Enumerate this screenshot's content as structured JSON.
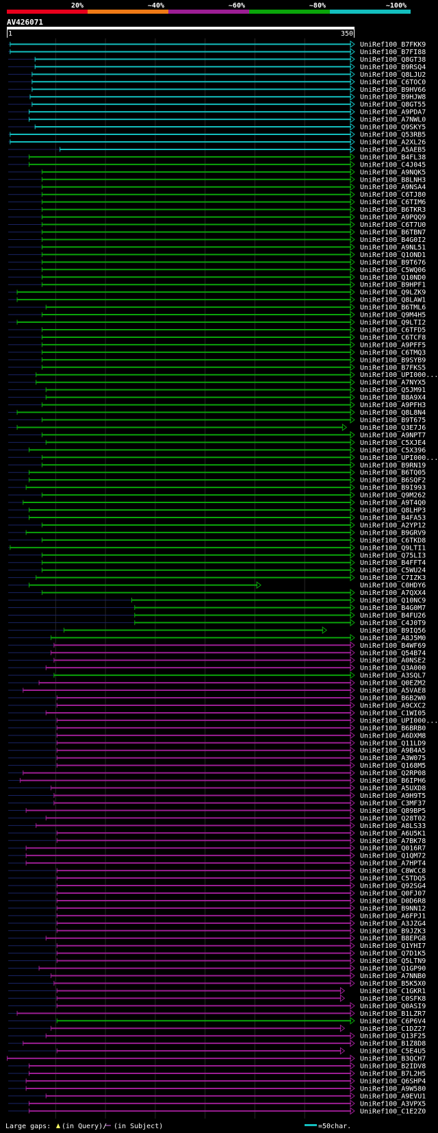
{
  "chart_data": {
    "type": "alignment-overview",
    "query": {
      "name": "AV426071",
      "start": 1,
      "end": 350
    },
    "identity_legend": [
      {
        "label": "20%",
        "color": "#e8001c"
      },
      {
        "label": "~40%",
        "color": "#ef7a16"
      },
      {
        "label": "~60%",
        "color": "#9c1e94"
      },
      {
        "label": "~80%",
        "color": "#0aa50a"
      },
      {
        "label": "~100%",
        "color": "#13bfbf"
      }
    ],
    "hits": [
      {
        "name": "UniRef100_B7FKK9",
        "start": 4,
        "end": 350,
        "identity": 100
      },
      {
        "name": "UniRef100_B7FI88",
        "start": 4,
        "end": 350,
        "identity": 100
      },
      {
        "name": "UniRef100_Q8GT38",
        "start": 29,
        "end": 350,
        "identity": 100
      },
      {
        "name": "UniRef100_B9RSQ4",
        "start": 29,
        "end": 350,
        "identity": 100
      },
      {
        "name": "UniRef100_Q8LJU2",
        "start": 26,
        "end": 350,
        "identity": 100
      },
      {
        "name": "UniRef100_C6TOC0",
        "start": 26,
        "end": 350,
        "identity": 100
      },
      {
        "name": "UniRef100_B9HV66",
        "start": 26,
        "end": 350,
        "identity": 100
      },
      {
        "name": "UniRef100_B9HJW8",
        "start": 24,
        "end": 350,
        "identity": 100
      },
      {
        "name": "UniRef100_Q8GT55",
        "start": 26,
        "end": 350,
        "identity": 100
      },
      {
        "name": "UniRef100_A9PDA7",
        "start": 23,
        "end": 350,
        "identity": 100
      },
      {
        "name": "UniRef100_A7NWL0",
        "start": 23,
        "end": 350,
        "identity": 100
      },
      {
        "name": "UniRef100_Q9SKY5",
        "start": 29,
        "end": 350,
        "identity": 100
      },
      {
        "name": "UniRef100_Q53RB5",
        "start": 4,
        "end": 350,
        "identity": 100
      },
      {
        "name": "UniRef100_A2XL26",
        "start": 4,
        "end": 350,
        "identity": 100
      },
      {
        "name": "UniRef100_A5AEB5",
        "start": 54,
        "end": 350,
        "identity": 100
      },
      {
        "name": "UniRef100_B4FL38",
        "start": 23,
        "end": 350,
        "identity": 80
      },
      {
        "name": "UniRef100_C4J045",
        "start": 23,
        "end": 350,
        "identity": 80
      },
      {
        "name": "UniRef100_A9NQK5",
        "start": 36,
        "end": 350,
        "identity": 80
      },
      {
        "name": "UniRef100_B8LNH3",
        "start": 36,
        "end": 350,
        "identity": 80
      },
      {
        "name": "UniRef100_A9NSA4",
        "start": 36,
        "end": 350,
        "identity": 80
      },
      {
        "name": "UniRef100_C6TJ80",
        "start": 36,
        "end": 350,
        "identity": 80
      },
      {
        "name": "UniRef100_C6TIM6",
        "start": 36,
        "end": 350,
        "identity": 80
      },
      {
        "name": "UniRef100_B6TKR3",
        "start": 36,
        "end": 350,
        "identity": 80
      },
      {
        "name": "UniRef100_A9PQQ9",
        "start": 36,
        "end": 350,
        "identity": 80
      },
      {
        "name": "UniRef100_C6T7U0",
        "start": 36,
        "end": 350,
        "identity": 80
      },
      {
        "name": "UniRef100_B6TBN7",
        "start": 36,
        "end": 350,
        "identity": 80
      },
      {
        "name": "UniRef100_B4G0I2",
        "start": 36,
        "end": 350,
        "identity": 80
      },
      {
        "name": "UniRef100_A9NL51",
        "start": 36,
        "end": 350,
        "identity": 80
      },
      {
        "name": "UniRef100_Q1OND1",
        "start": 36,
        "end": 350,
        "identity": 80
      },
      {
        "name": "UniRef100_B9T676",
        "start": 36,
        "end": 350,
        "identity": 80
      },
      {
        "name": "UniRef100_C5WQ06",
        "start": 36,
        "end": 350,
        "identity": 80
      },
      {
        "name": "UniRef100_Q10ND0",
        "start": 36,
        "end": 350,
        "identity": 80
      },
      {
        "name": "UniRef100_B9HPF1",
        "start": 36,
        "end": 350,
        "identity": 80
      },
      {
        "name": "UniRef100_Q9LZK9",
        "start": 11,
        "end": 350,
        "identity": 80
      },
      {
        "name": "UniRef100_Q8LAW1",
        "start": 11,
        "end": 350,
        "identity": 80
      },
      {
        "name": "UniRef100_B6TML6",
        "start": 40,
        "end": 350,
        "identity": 80
      },
      {
        "name": "UniRef100_Q9M4H5",
        "start": 36,
        "end": 350,
        "identity": 80
      },
      {
        "name": "UniRef100_Q9LTI2",
        "start": 11,
        "end": 350,
        "identity": 80
      },
      {
        "name": "UniRef100_C6TFD5",
        "start": 36,
        "end": 350,
        "identity": 80
      },
      {
        "name": "UniRef100_C6TCF8",
        "start": 36,
        "end": 350,
        "identity": 80
      },
      {
        "name": "UniRef100_A9PFF5",
        "start": 36,
        "end": 350,
        "identity": 80
      },
      {
        "name": "UniRef100_C6TMQ3",
        "start": 36,
        "end": 350,
        "identity": 80
      },
      {
        "name": "UniRef100_B9SYB9",
        "start": 36,
        "end": 350,
        "identity": 80
      },
      {
        "name": "UniRef100_B7FKS5",
        "start": 36,
        "end": 350,
        "identity": 80
      },
      {
        "name": "UniRef100_UPI000...",
        "start": 30,
        "end": 350,
        "identity": 80
      },
      {
        "name": "UniRef100_A7NYX5",
        "start": 30,
        "end": 350,
        "identity": 80
      },
      {
        "name": "UniRef100_Q5JM91",
        "start": 40,
        "end": 350,
        "identity": 80
      },
      {
        "name": "UniRef100_B8A9X4",
        "start": 40,
        "end": 350,
        "identity": 80
      },
      {
        "name": "UniRef100_A9PFH3",
        "start": 36,
        "end": 350,
        "identity": 80
      },
      {
        "name": "UniRef100_Q8L8N4",
        "start": 11,
        "end": 350,
        "identity": 80
      },
      {
        "name": "UniRef100_B9T675",
        "start": 36,
        "end": 350,
        "identity": 80
      },
      {
        "name": "UniRef100_Q3E7J6",
        "start": 11,
        "end": 342,
        "identity": 80
      },
      {
        "name": "UniRef100_A9NPT7",
        "start": 36,
        "end": 350,
        "identity": 80
      },
      {
        "name": "UniRef100_C5XJE4",
        "start": 40,
        "end": 350,
        "identity": 80
      },
      {
        "name": "UniRef100_C5X396",
        "start": 23,
        "end": 350,
        "identity": 80
      },
      {
        "name": "UniRef100_UPI000...",
        "start": 36,
        "end": 350,
        "identity": 80
      },
      {
        "name": "UniRef100_B9RN19",
        "start": 36,
        "end": 350,
        "identity": 80
      },
      {
        "name": "UniRef100_B6TQ05",
        "start": 23,
        "end": 350,
        "identity": 80
      },
      {
        "name": "UniRef100_B6SQF2",
        "start": 23,
        "end": 350,
        "identity": 80
      },
      {
        "name": "UniRef100_B9I993",
        "start": 20,
        "end": 350,
        "identity": 80
      },
      {
        "name": "UniRef100_Q9M262",
        "start": 36,
        "end": 350,
        "identity": 80
      },
      {
        "name": "UniRef100_A9T4Q0",
        "start": 17,
        "end": 350,
        "identity": 80
      },
      {
        "name": "UniRef100_Q8LHP3",
        "start": 23,
        "end": 350,
        "identity": 80
      },
      {
        "name": "UniRef100_B4FA53",
        "start": 23,
        "end": 350,
        "identity": 80
      },
      {
        "name": "UniRef100_A2YP12",
        "start": 36,
        "end": 350,
        "identity": 80
      },
      {
        "name": "UniRef100_B9GRV9",
        "start": 20,
        "end": 350,
        "identity": 80
      },
      {
        "name": "UniRef100_C6TKD8",
        "start": 36,
        "end": 350,
        "identity": 80
      },
      {
        "name": "UniRef100_Q9LTI1",
        "start": 4,
        "end": 350,
        "identity": 80
      },
      {
        "name": "UniRef100_Q75LI3",
        "start": 36,
        "end": 350,
        "identity": 80
      },
      {
        "name": "UniRef100_B4FFT4",
        "start": 36,
        "end": 350,
        "identity": 80
      },
      {
        "name": "UniRef100_C5WU24",
        "start": 36,
        "end": 350,
        "identity": 80
      },
      {
        "name": "UniRef100_C7IZK3",
        "start": 30,
        "end": 350,
        "identity": 80
      },
      {
        "name": "UniRef100_C0HDY6",
        "start": 23,
        "end": 256,
        "identity": 80
      },
      {
        "name": "UniRef100_A7QXX4",
        "start": 36,
        "end": 350,
        "identity": 80
      },
      {
        "name": "UniRef100_Q10NC9",
        "start": 126,
        "end": 350,
        "identity": 80
      },
      {
        "name": "UniRef100_B4G0M7",
        "start": 129,
        "end": 350,
        "identity": 80
      },
      {
        "name": "UniRef100_B4FU26",
        "start": 129,
        "end": 350,
        "identity": 80
      },
      {
        "name": "UniRef100_C4J0T9",
        "start": 129,
        "end": 350,
        "identity": 80
      },
      {
        "name": "UniRef100_B9IQ56",
        "start": 58,
        "end": 322,
        "identity": 80
      },
      {
        "name": "UniRef100_A8J5M0",
        "start": 45,
        "end": 350,
        "identity": 80
      },
      {
        "name": "UniRef100_B4WF69",
        "start": 48,
        "end": 350,
        "identity": 60
      },
      {
        "name": "UniRef100_Q54B74",
        "start": 45,
        "end": 350,
        "identity": 60
      },
      {
        "name": "UniRef100_A0NSE2",
        "start": 48,
        "end": 350,
        "identity": 60
      },
      {
        "name": "UniRef100_Q3A000",
        "start": 40,
        "end": 350,
        "identity": 60
      },
      {
        "name": "UniRef100_A3SQL7",
        "start": 48,
        "end": 350,
        "identity": 80
      },
      {
        "name": "UniRef100_Q0EZM2",
        "start": 33,
        "end": 350,
        "identity": 60
      },
      {
        "name": "UniRef100_A5VAE8",
        "start": 17,
        "end": 350,
        "identity": 60
      },
      {
        "name": "UniRef100_B6B2W0",
        "start": 51,
        "end": 350,
        "identity": 60
      },
      {
        "name": "UniRef100_A9CXC2",
        "start": 51,
        "end": 350,
        "identity": 60
      },
      {
        "name": "UniRef100_C1WI05",
        "start": 40,
        "end": 350,
        "identity": 60
      },
      {
        "name": "UniRef100_UPI000...",
        "start": 51,
        "end": 350,
        "identity": 60
      },
      {
        "name": "UniRef100_B6BRB0",
        "start": 51,
        "end": 350,
        "identity": 60
      },
      {
        "name": "UniRef100_A6DXM8",
        "start": 51,
        "end": 350,
        "identity": 60
      },
      {
        "name": "UniRef100_Q11LD9",
        "start": 51,
        "end": 350,
        "identity": 60
      },
      {
        "name": "UniRef100_A9B4A5",
        "start": 51,
        "end": 350,
        "identity": 60
      },
      {
        "name": "UniRef100_A3W075",
        "start": 51,
        "end": 350,
        "identity": 60
      },
      {
        "name": "UniRef100_Q168M5",
        "start": 51,
        "end": 350,
        "identity": 60
      },
      {
        "name": "UniRef100_Q2RP08",
        "start": 17,
        "end": 350,
        "identity": 60
      },
      {
        "name": "UniRef100_B6IPH6",
        "start": 14,
        "end": 350,
        "identity": 60
      },
      {
        "name": "UniRef100_A5UXD8",
        "start": 45,
        "end": 350,
        "identity": 60
      },
      {
        "name": "UniRef100_A9H9T5",
        "start": 48,
        "end": 350,
        "identity": 60
      },
      {
        "name": "UniRef100_C3MF37",
        "start": 48,
        "end": 350,
        "identity": 60
      },
      {
        "name": "UniRef100_Q89BP5",
        "start": 20,
        "end": 350,
        "identity": 60
      },
      {
        "name": "UniRef100_Q28T02",
        "start": 40,
        "end": 350,
        "identity": 60
      },
      {
        "name": "UniRef100_A8LS33",
        "start": 30,
        "end": 350,
        "identity": 60
      },
      {
        "name": "UniRef100_A6U5K1",
        "start": 51,
        "end": 350,
        "identity": 60
      },
      {
        "name": "UniRef100_A7BK78",
        "start": 51,
        "end": 350,
        "identity": 60
      },
      {
        "name": "UniRef100_Q016R7",
        "start": 20,
        "end": 350,
        "identity": 60
      },
      {
        "name": "UniRef100_Q1QM72",
        "start": 20,
        "end": 350,
        "identity": 60
      },
      {
        "name": "UniRef100_A7HPT4",
        "start": 20,
        "end": 350,
        "identity": 60
      },
      {
        "name": "UniRef100_C8WCC8",
        "start": 51,
        "end": 350,
        "identity": 60
      },
      {
        "name": "UniRef100_C5TDQ5",
        "start": 51,
        "end": 350,
        "identity": 60
      },
      {
        "name": "UniRef100_Q92SG4",
        "start": 51,
        "end": 350,
        "identity": 60
      },
      {
        "name": "UniRef100_Q0FJ07",
        "start": 51,
        "end": 350,
        "identity": 60
      },
      {
        "name": "UniRef100_D0D6R8",
        "start": 51,
        "end": 350,
        "identity": 60
      },
      {
        "name": "UniRef100_B9NN12",
        "start": 51,
        "end": 350,
        "identity": 60
      },
      {
        "name": "UniRef100_A6FPJ1",
        "start": 51,
        "end": 350,
        "identity": 60
      },
      {
        "name": "UniRef100_A3JZG4",
        "start": 51,
        "end": 350,
        "identity": 60
      },
      {
        "name": "UniRef100_B9JZK3",
        "start": 51,
        "end": 350,
        "identity": 60
      },
      {
        "name": "UniRef100_B8EPG8",
        "start": 40,
        "end": 350,
        "identity": 60
      },
      {
        "name": "UniRef100_Q1YHI7",
        "start": 51,
        "end": 350,
        "identity": 60
      },
      {
        "name": "UniRef100_Q7D1K5",
        "start": 51,
        "end": 350,
        "identity": 60
      },
      {
        "name": "UniRef100_Q5LTN9",
        "start": 51,
        "end": 350,
        "identity": 60
      },
      {
        "name": "UniRef100_Q1GP90",
        "start": 33,
        "end": 350,
        "identity": 60
      },
      {
        "name": "UniRef100_A7NNB0",
        "start": 45,
        "end": 350,
        "identity": 60
      },
      {
        "name": "UniRef100_B5K5X0",
        "start": 48,
        "end": 350,
        "identity": 60
      },
      {
        "name": "UniRef100_C1GKR1",
        "start": 51,
        "end": 340,
        "identity": 60
      },
      {
        "name": "UniRef100_C0SFK8",
        "start": 51,
        "end": 340,
        "identity": 60
      },
      {
        "name": "UniRef100_Q0ASI9",
        "start": 51,
        "end": 350,
        "identity": 60
      },
      {
        "name": "UniRef100_B1LZR7",
        "start": 11,
        "end": 350,
        "identity": 60
      },
      {
        "name": "UniRef100_C6P6V4",
        "start": 51,
        "end": 350,
        "identity": 80
      },
      {
        "name": "UniRef100_C1DZ27",
        "start": 45,
        "end": 340,
        "identity": 60
      },
      {
        "name": "UniRef100_Q13F25",
        "start": 40,
        "end": 350,
        "identity": 60
      },
      {
        "name": "UniRef100_B1Z8D8",
        "start": 17,
        "end": 350,
        "identity": 60
      },
      {
        "name": "UniRef100_C5E4U5",
        "start": 51,
        "end": 340,
        "identity": 60
      },
      {
        "name": "UniRef100_B3QCH7",
        "start": 1,
        "end": 350,
        "identity": 60
      },
      {
        "name": "UniRef100_B2IDV8",
        "start": 23,
        "end": 350,
        "identity": 60
      },
      {
        "name": "UniRef100_B7L2H5",
        "start": 23,
        "end": 350,
        "identity": 60
      },
      {
        "name": "UniRef100_Q6SHP4",
        "start": 20,
        "end": 350,
        "identity": 60
      },
      {
        "name": "UniRef100_A9W580",
        "start": 20,
        "end": 350,
        "identity": 60
      },
      {
        "name": "UniRef100_A9EVU1",
        "start": 40,
        "end": 350,
        "identity": 60
      },
      {
        "name": "UniRef100_A3VPX5",
        "start": 23,
        "end": 350,
        "identity": 60
      },
      {
        "name": "UniRef100_C1E2Z0",
        "start": 23,
        "end": 350,
        "identity": 60
      }
    ],
    "footer": {
      "large_gaps_label": "Large gaps:",
      "query_gap_label": "(in Query)/",
      "subject_gap_label": "(in Subject)",
      "scale_label": "=50char."
    }
  }
}
